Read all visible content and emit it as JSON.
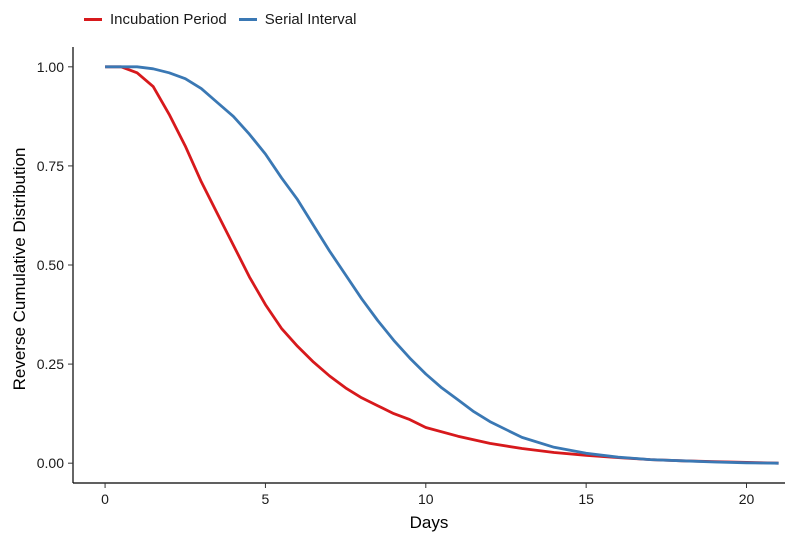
{
  "chart_data": {
    "type": "line",
    "title": "",
    "xlabel": "Days",
    "ylabel": "Reverse Cumulative Distribution",
    "xlim": [
      -1,
      21.2
    ],
    "ylim": [
      -0.05,
      1.05
    ],
    "xticks": [
      0,
      5,
      10,
      15,
      20
    ],
    "xtick_labels": [
      "0",
      "5",
      "10",
      "15",
      "20"
    ],
    "yticks": [
      0,
      0.25,
      0.5,
      0.75,
      1.0
    ],
    "ytick_labels": [
      "0.00",
      "0.25",
      "0.50",
      "0.75",
      "1.00"
    ],
    "grid": false,
    "legend": "top-left",
    "series": [
      {
        "name": "Incubation Period",
        "color": "#d7191c",
        "x": [
          0,
          0.5,
          1,
          1.5,
          2,
          2.5,
          3,
          3.5,
          4,
          4.5,
          5,
          5.5,
          6,
          6.5,
          7,
          7.5,
          8,
          8.5,
          9,
          9.5,
          10,
          11,
          12,
          13,
          14,
          15,
          16,
          17,
          18,
          19,
          20,
          21
        ],
        "y": [
          1.0,
          1.0,
          0.985,
          0.95,
          0.88,
          0.8,
          0.71,
          0.63,
          0.55,
          0.47,
          0.4,
          0.34,
          0.295,
          0.255,
          0.22,
          0.19,
          0.165,
          0.145,
          0.125,
          0.11,
          0.09,
          0.068,
          0.05,
          0.037,
          0.027,
          0.02,
          0.014,
          0.009,
          0.006,
          0.004,
          0.002,
          0.0
        ]
      },
      {
        "name": "Serial Interval",
        "color": "#3a78b4",
        "x": [
          0,
          0.5,
          1,
          1.5,
          2,
          2.5,
          3,
          3.5,
          4,
          4.5,
          5,
          5.5,
          6,
          6.5,
          7,
          7.5,
          8,
          8.5,
          9,
          9.5,
          10,
          10.5,
          11,
          11.5,
          12,
          13,
          14,
          15,
          16,
          17,
          18,
          19,
          20,
          21
        ],
        "y": [
          1.0,
          1.0,
          1.0,
          0.995,
          0.985,
          0.97,
          0.945,
          0.91,
          0.875,
          0.83,
          0.78,
          0.72,
          0.665,
          0.6,
          0.535,
          0.475,
          0.415,
          0.36,
          0.31,
          0.265,
          0.225,
          0.19,
          0.16,
          0.13,
          0.105,
          0.065,
          0.04,
          0.025,
          0.015,
          0.009,
          0.006,
          0.003,
          0.001,
          0.0
        ]
      }
    ]
  }
}
